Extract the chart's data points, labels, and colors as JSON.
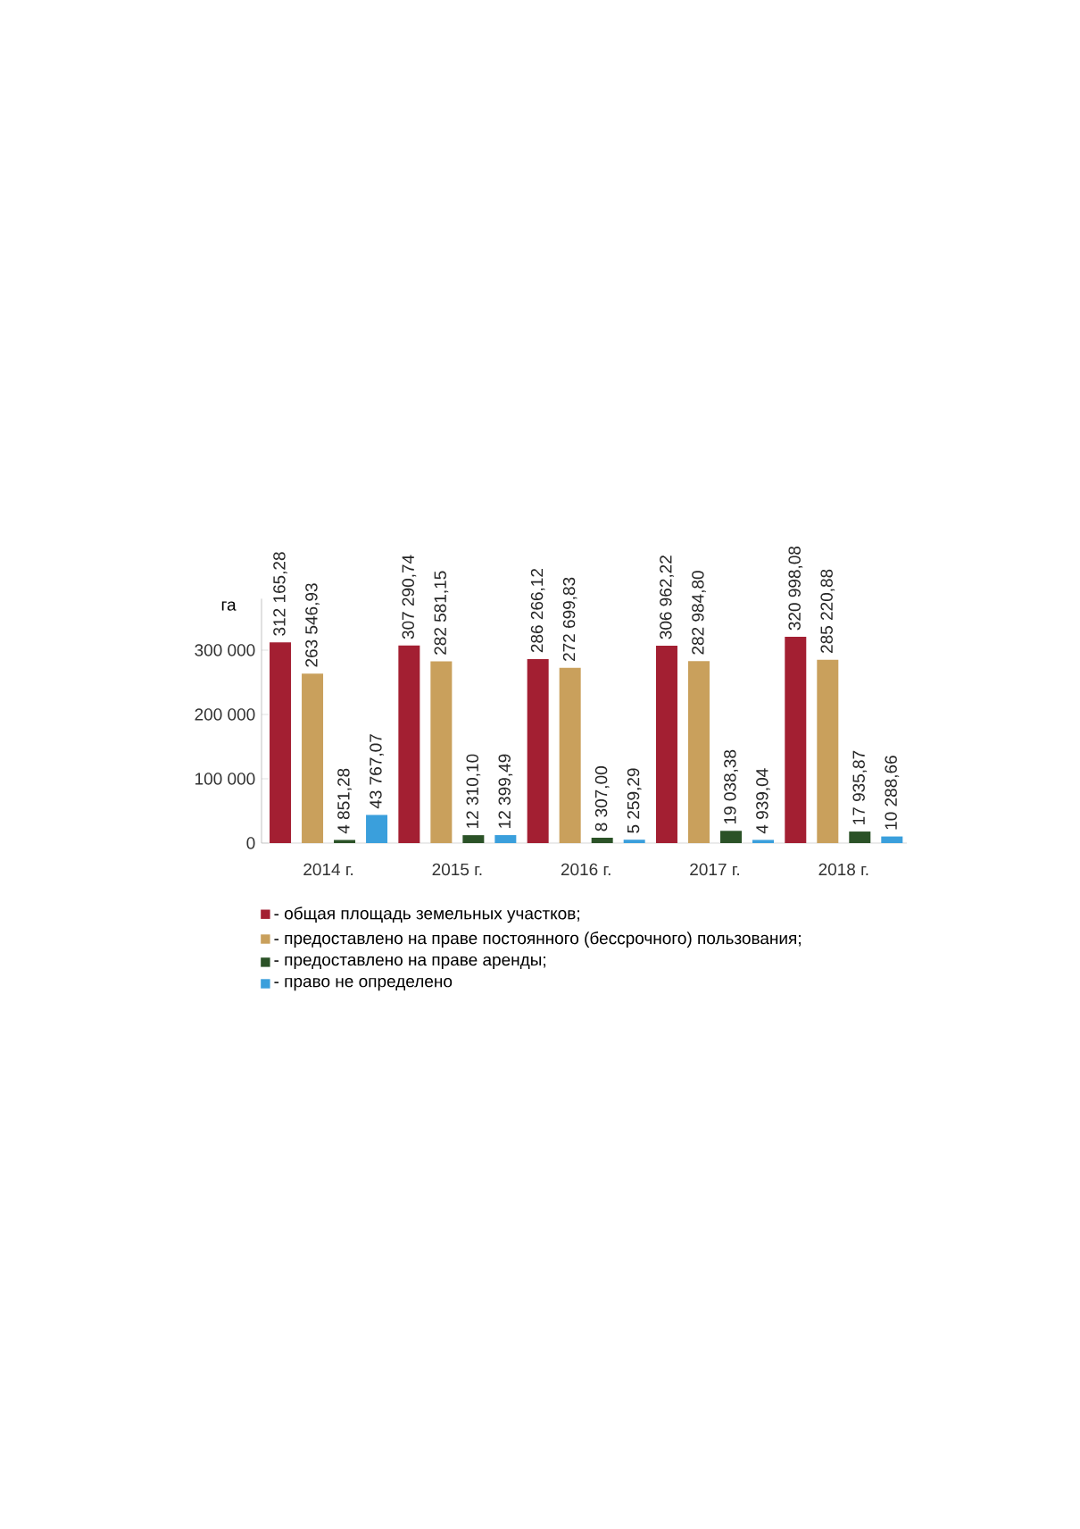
{
  "chart_data": {
    "type": "bar",
    "ylabel": "га",
    "categories": [
      "2014 г.",
      "2015 г.",
      "2016 г.",
      "2017 г.",
      "2018 г."
    ],
    "series": [
      {
        "name": "- общая площадь земельных участков;",
        "color": "#a31f32",
        "values": [
          312165.28,
          307290.74,
          286266.12,
          306962.22,
          320998.08
        ],
        "value_labels": [
          "312 165,28",
          "307 290,74",
          "286 266,12",
          "306 962,22",
          "320 998,08"
        ]
      },
      {
        "name": "- предоставлено на праве постоянного (бессрочного) пользования;",
        "color": "#c9a05c",
        "values": [
          263546.93,
          282581.15,
          272699.83,
          282984.8,
          285220.88
        ],
        "value_labels": [
          "263 546,93",
          "282 581,15",
          "272 699,83",
          "282 984,80",
          "285 220,88"
        ]
      },
      {
        "name": "- предоставлено на праве аренды;",
        "color": "#2b5227",
        "values": [
          4851.28,
          12310.1,
          8307.0,
          19038.38,
          17935.87
        ],
        "value_labels": [
          "4 851,28",
          "12 310,10",
          "8 307,00",
          "19 038,38",
          "17 935,87"
        ]
      },
      {
        "name": "- право не определено",
        "color": "#3a9fdc",
        "values": [
          43767.07,
          12399.49,
          5259.29,
          4939.04,
          10288.66
        ],
        "value_labels": [
          "43 767,07",
          "12 399,49",
          "5 259,29",
          "4 939,04",
          "10 288,66"
        ]
      }
    ],
    "ylim": [
      0,
      380000
    ],
    "yticks": [
      {
        "value": 0,
        "label": "0"
      },
      {
        "value": 100000,
        "label": "100 000"
      },
      {
        "value": 200000,
        "label": "200 000"
      },
      {
        "value": 300000,
        "label": "300 000"
      }
    ],
    "legend": "bottom"
  }
}
